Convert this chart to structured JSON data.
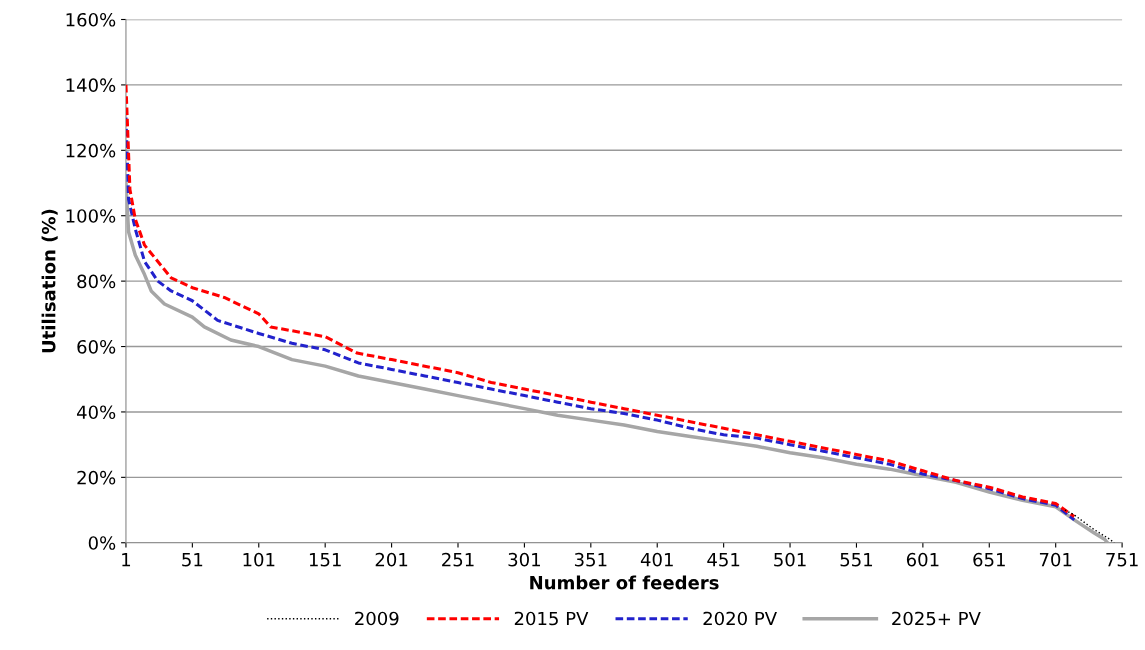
{
  "chart_data": {
    "type": "line",
    "xlabel": "Number of feeders",
    "ylabel": "Utilisation (%)",
    "xlim": [
      1,
      751
    ],
    "xticks": [
      1,
      51,
      101,
      151,
      201,
      251,
      301,
      351,
      401,
      451,
      501,
      551,
      601,
      651,
      701,
      751
    ],
    "ylim": [
      0,
      160
    ],
    "yticks": [
      {
        "value": 0,
        "label": "0%"
      },
      {
        "value": 20,
        "label": "20%"
      },
      {
        "value": 40,
        "label": "40%"
      },
      {
        "value": 60,
        "label": "60%"
      },
      {
        "value": 80,
        "label": "80%"
      },
      {
        "value": 100,
        "label": "100%"
      },
      {
        "value": 120,
        "label": "120%"
      },
      {
        "value": 140,
        "label": "140%"
      },
      {
        "value": 160,
        "label": "160%"
      }
    ],
    "grid": "y",
    "legend": "bottom",
    "marker": "none",
    "series": [
      {
        "name": "2009",
        "color": "#000000",
        "line_style": "dotted",
        "x": [
          708,
          715,
          730,
          742,
          745
        ],
        "values": [
          10,
          8.5,
          4,
          1,
          0
        ]
      },
      {
        "name": "2015 PV",
        "color": "#ff0000",
        "line_style": "dashed",
        "x": [
          1,
          4,
          8,
          15,
          25,
          35,
          51,
          75,
          101,
          110,
          151,
          175,
          201,
          226,
          251,
          276,
          301,
          326,
          351,
          376,
          401,
          426,
          451,
          476,
          501,
          526,
          551,
          576,
          601,
          626,
          651,
          676,
          701,
          715
        ],
        "values": [
          140,
          108,
          99,
          91,
          86,
          81,
          78,
          75,
          70,
          66,
          63,
          58,
          56,
          54,
          52,
          49,
          47,
          45,
          43,
          41,
          39,
          37,
          35,
          33,
          31,
          29,
          27,
          25,
          22,
          19,
          17,
          14,
          12,
          8
        ]
      },
      {
        "name": "2020 PV",
        "color": "#2222cc",
        "line_style": "dashed",
        "x": [
          1,
          3,
          8,
          15,
          25,
          35,
          51,
          70,
          101,
          126,
          151,
          176,
          201,
          226,
          251,
          276,
          301,
          326,
          351,
          376,
          401,
          426,
          451,
          476,
          501,
          526,
          551,
          576,
          601,
          626,
          651,
          676,
          701,
          715
        ],
        "values": [
          130,
          105,
          96,
          86,
          80,
          77,
          74,
          68,
          64,
          61,
          59,
          55,
          53,
          51,
          49,
          47,
          45,
          43,
          41,
          39.5,
          37.5,
          35,
          33,
          32,
          30,
          28,
          26,
          24,
          21,
          19,
          16.5,
          13.5,
          11.5,
          7
        ]
      },
      {
        "name": "2025+ PV",
        "color": "#a6a6a6",
        "line_style": "solid",
        "x": [
          1,
          3,
          8,
          15,
          20,
          30,
          51,
          60,
          80,
          101,
          126,
          151,
          176,
          201,
          226,
          251,
          276,
          301,
          326,
          351,
          376,
          401,
          426,
          451,
          476,
          501,
          526,
          551,
          576,
          601,
          626,
          651,
          676,
          701,
          715,
          730,
          738,
          740
        ],
        "values": [
          110,
          95,
          88,
          82,
          77,
          73,
          69,
          66,
          62,
          60,
          56,
          54,
          51,
          49,
          47,
          45,
          43,
          41,
          39,
          37.5,
          36,
          34,
          32.5,
          31,
          29.5,
          27.5,
          26,
          24,
          22.5,
          20.5,
          18.5,
          15.5,
          13,
          11,
          7,
          3,
          1,
          0
        ]
      }
    ]
  }
}
